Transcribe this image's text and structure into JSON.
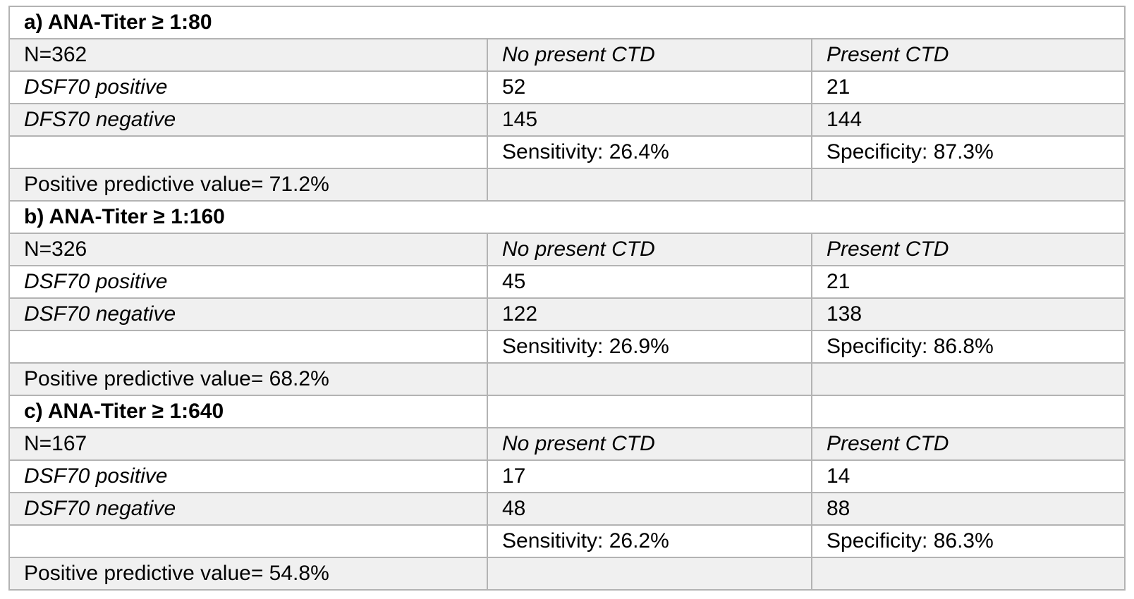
{
  "colors": {
    "row_shade_bg": "#f0f0f0",
    "row_plain_bg": "#ffffff",
    "border": "#b3b3b3",
    "text": "#000000"
  },
  "table": {
    "sections": [
      {
        "title": "a) ANA-Titer ≥ 1:80",
        "n_label": "N=362",
        "col2_header": "No present CTD",
        "col3_header": "Present CTD",
        "positive_row": {
          "label": "DSF70 positive",
          "no_ctd": "52",
          "ctd": "21"
        },
        "negative_row": {
          "label": "DFS70 negative",
          "no_ctd": "145",
          "ctd": "144"
        },
        "sensitivity": "Sensitivity: 26.4%",
        "specificity": "Specificity: 87.3%",
        "ppv": "Positive predictive value= 71.2%"
      },
      {
        "title": "b) ANA-Titer ≥ 1:160",
        "n_label": "N=326",
        "col2_header": "No present CTD",
        "col3_header": "Present CTD",
        "positive_row": {
          "label": "DSF70 positive",
          "no_ctd": "45",
          "ctd": "21"
        },
        "negative_row": {
          "label": "DSF70 negative",
          "no_ctd": "122",
          "ctd": "138"
        },
        "sensitivity": "Sensitivity: 26.9%",
        "specificity": "Specificity: 86.8%",
        "ppv": "Positive predictive value= 68.2%"
      },
      {
        "title": "c) ANA-Titer ≥ 1:640",
        "n_label": "N=167",
        "col2_header": "No present CTD",
        "col3_header": "Present CTD",
        "positive_row": {
          "label": "DSF70 positive",
          "no_ctd": "17",
          "ctd": "14"
        },
        "negative_row": {
          "label": "DSF70 negative",
          "no_ctd": "48",
          "ctd": "88"
        },
        "sensitivity": "Sensitivity: 26.2%",
        "specificity": "Specificity: 86.3%",
        "ppv": "Positive predictive value= 54.8%"
      }
    ]
  }
}
